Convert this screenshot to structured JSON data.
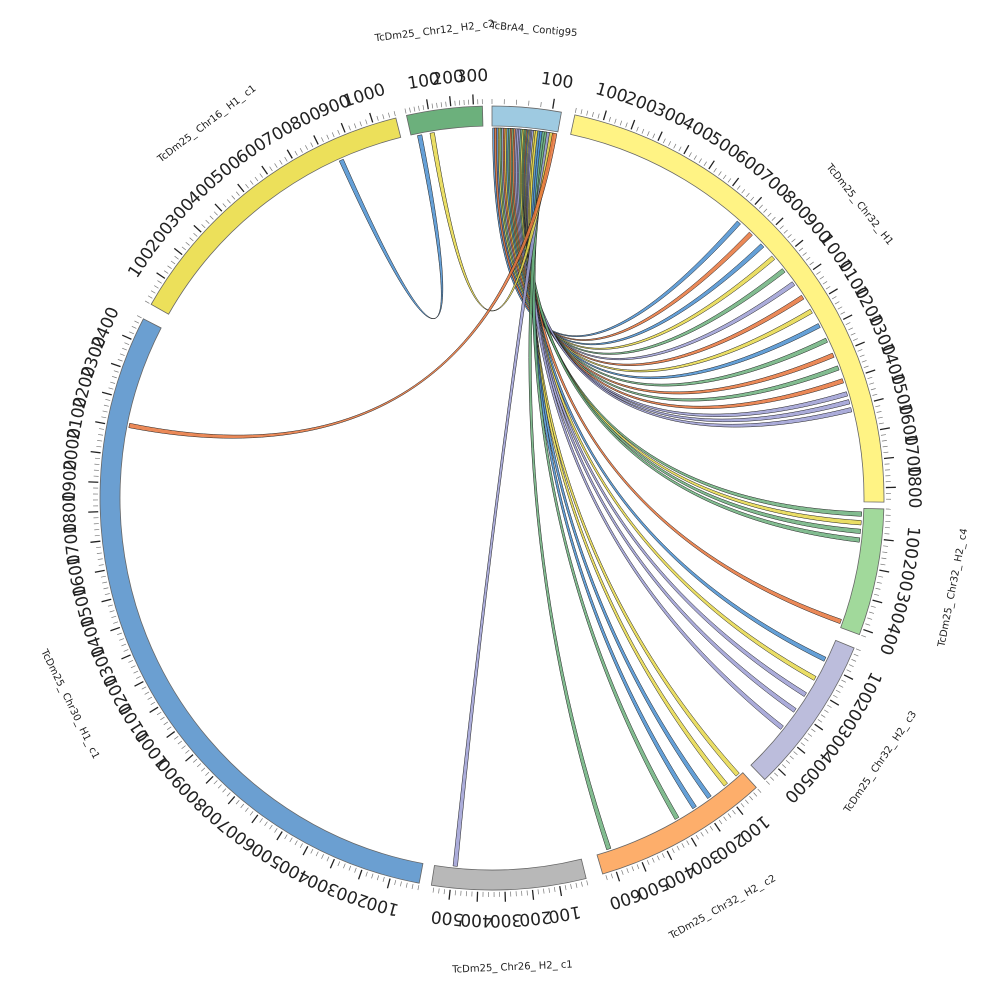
{
  "diagram": {
    "type": "circos",
    "segments": [
      {
        "id": "contig95",
        "label": "TcBrA4_ Contig95",
        "color": "#9ecae1",
        "length": 115,
        "tick_labels": [
          "100"
        ],
        "start_angle": 0.0,
        "end_angle": 10.2
      },
      {
        "id": "chr32_h1",
        "label": "TcDm25_ Chr32_ H1",
        "color": "#fff384",
        "length": 1850,
        "tick_labels": [
          "100",
          "200",
          "300",
          "400",
          "500",
          "600",
          "700",
          "800",
          "900",
          "1000",
          "1100",
          "1200",
          "1300",
          "1400",
          "1500",
          "1600",
          "1700",
          "1800"
        ],
        "start_angle": 12.2,
        "end_angle": 90.6
      },
      {
        "id": "chr32_h2_c4",
        "label": "TcDm25_ Chr32_ H2_ c4",
        "color": "#a1d99b",
        "length": 420,
        "tick_labels": [
          "100",
          "200",
          "300",
          "400"
        ],
        "start_angle": 91.6,
        "end_angle": 110.4
      },
      {
        "id": "chr32_h2_c3",
        "label": "TcDm25_ Chr32_ H2_ c3",
        "color": "#bcbddc",
        "length": 560,
        "tick_labels": [
          "100",
          "200",
          "300",
          "400",
          "500"
        ],
        "start_angle": 112.5,
        "end_angle": 135.9
      },
      {
        "id": "chr32_h2_c2",
        "label": "TcDm25_ Chr32_ H2_ c2",
        "color": "#fdae6b",
        "length": 650,
        "tick_labels": [
          "100",
          "200",
          "300",
          "400",
          "500",
          "600"
        ],
        "start_angle": 137.6,
        "end_angle": 163.6
      },
      {
        "id": "chr26_h2_c1",
        "label": "TcDm25_ Chr26_ H2_ c1",
        "color": "#b8b8b8",
        "length": 570,
        "tick_labels": [
          "100",
          "200",
          "300",
          "400",
          "500"
        ],
        "start_angle": 166.1,
        "end_angle": 188.9
      },
      {
        "id": "chr30_h1_c1",
        "label": "TcDm25_ Chr30_ H1_ c1",
        "color": "#6b9fd1",
        "length": 2480,
        "tick_labels": [
          "100",
          "200",
          "300",
          "400",
          "500",
          "600",
          "700",
          "800",
          "900",
          "1000",
          "1100",
          "1200",
          "1300",
          "1400",
          "1500",
          "1600",
          "1700",
          "1800",
          "1900",
          "2000",
          "2100",
          "2200",
          "2300",
          "2400"
        ],
        "start_angle": 190.7,
        "end_angle": 297.2
      },
      {
        "id": "chr16_h1_c1",
        "label": "TcDm25_ Chr16_ H1_ c1",
        "color": "#ece05a",
        "length": 1080,
        "tick_labels": [
          "100",
          "200",
          "300",
          "400",
          "500",
          "600",
          "700",
          "800",
          "900",
          "1000"
        ],
        "start_angle": 299.6,
        "end_angle": 345.8
      },
      {
        "id": "chr12_h2_c2",
        "label": "TcDm25_ Chr12_ H2_ c2",
        "color": "#6cb07c",
        "length": 340,
        "tick_labels": [
          "100",
          "200",
          "300"
        ],
        "start_angle": 347.4,
        "end_angle": 358.6
      }
    ],
    "links": [
      {
        "from": "contig95",
        "from_pos": 5,
        "to": "chr32_h1",
        "to_pos": 700,
        "color": "#4a8fd0"
      },
      {
        "from": "contig95",
        "from_pos": 8,
        "to": "chr32_h1",
        "to_pos": 760,
        "color": "#e8743b"
      },
      {
        "from": "contig95",
        "from_pos": 12,
        "to": "chr32_h1",
        "to_pos": 820,
        "color": "#4a8fd0"
      },
      {
        "from": "contig95",
        "from_pos": 15,
        "to": "chr32_h1",
        "to_pos": 880,
        "color": "#e6d84a"
      },
      {
        "from": "contig95",
        "from_pos": 18,
        "to": "chr32_h1",
        "to_pos": 940,
        "color": "#6cb07c"
      },
      {
        "from": "contig95",
        "from_pos": 21,
        "to": "chr32_h1",
        "to_pos": 1000,
        "color": "#9c9ed4"
      },
      {
        "from": "contig95",
        "from_pos": 24,
        "to": "chr32_h1",
        "to_pos": 1060,
        "color": "#e8743b"
      },
      {
        "from": "contig95",
        "from_pos": 27,
        "to": "chr32_h1",
        "to_pos": 1120,
        "color": "#e6d84a"
      },
      {
        "from": "contig95",
        "from_pos": 30,
        "to": "chr32_h1",
        "to_pos": 1180,
        "color": "#4a8fd0"
      },
      {
        "from": "contig95",
        "from_pos": 33,
        "to": "chr32_h1",
        "to_pos": 1240,
        "color": "#6cb07c"
      },
      {
        "from": "contig95",
        "from_pos": 36,
        "to": "chr32_h1",
        "to_pos": 1300,
        "color": "#e8743b"
      },
      {
        "from": "contig95",
        "from_pos": 39,
        "to": "chr32_h1",
        "to_pos": 1350,
        "color": "#6cb07c"
      },
      {
        "from": "contig95",
        "from_pos": 42,
        "to": "chr32_h1",
        "to_pos": 1400,
        "color": "#e8743b"
      },
      {
        "from": "contig95",
        "from_pos": 45,
        "to": "chr32_h1",
        "to_pos": 1450,
        "color": "#9c9ed4"
      },
      {
        "from": "contig95",
        "from_pos": 48,
        "to": "chr32_h1",
        "to_pos": 1480,
        "color": "#9c9ed4"
      },
      {
        "from": "contig95",
        "from_pos": 51,
        "to": "chr32_h1",
        "to_pos": 1510,
        "color": "#9c9ed4"
      },
      {
        "from": "contig95",
        "from_pos": 54,
        "to": "chr32_h2_c4",
        "to_pos": 20,
        "color": "#6cb07c"
      },
      {
        "from": "contig95",
        "from_pos": 57,
        "to": "chr32_h2_c4",
        "to_pos": 50,
        "color": "#e6d84a"
      },
      {
        "from": "contig95",
        "from_pos": 60,
        "to": "chr32_h2_c4",
        "to_pos": 80,
        "color": "#6cb07c"
      },
      {
        "from": "contig95",
        "from_pos": 62,
        "to": "chr32_h2_c4",
        "to_pos": 110,
        "color": "#6cb07c"
      },
      {
        "from": "contig95",
        "from_pos": 64,
        "to": "chr32_h2_c4",
        "to_pos": 400,
        "color": "#e8743b"
      },
      {
        "from": "contig95",
        "from_pos": 66,
        "to": "chr32_h2_c3",
        "to_pos": 80,
        "color": "#4a8fd0"
      },
      {
        "from": "contig95",
        "from_pos": 68,
        "to": "chr32_h2_c3",
        "to_pos": 160,
        "color": "#e6d84a"
      },
      {
        "from": "contig95",
        "from_pos": 70,
        "to": "chr32_h2_c3",
        "to_pos": 230,
        "color": "#9c9ed4"
      },
      {
        "from": "contig95",
        "from_pos": 72,
        "to": "chr32_h2_c3",
        "to_pos": 300,
        "color": "#9c9ed4"
      },
      {
        "from": "contig95",
        "from_pos": 74,
        "to": "chr32_h2_c3",
        "to_pos": 380,
        "color": "#9c9ed4"
      },
      {
        "from": "contig95",
        "from_pos": 77,
        "to": "chr32_h2_c2",
        "to_pos": 20,
        "color": "#e6d84a"
      },
      {
        "from": "contig95",
        "from_pos": 80,
        "to": "chr32_h2_c2",
        "to_pos": 80,
        "color": "#e6d84a"
      },
      {
        "from": "contig95",
        "from_pos": 84,
        "to": "chr32_h2_c2",
        "to_pos": 160,
        "color": "#4a8fd0"
      },
      {
        "from": "contig95",
        "from_pos": 88,
        "to": "chr32_h2_c2",
        "to_pos": 230,
        "color": "#4a8fd0"
      },
      {
        "from": "contig95",
        "from_pos": 92,
        "to": "chr32_h2_c2",
        "to_pos": 310,
        "color": "#6cb07c"
      },
      {
        "from": "contig95",
        "from_pos": 96,
        "to": "chr32_h2_c2",
        "to_pos": 600,
        "color": "#6cb07c"
      },
      {
        "from": "contig95",
        "from_pos": 100,
        "to": "chr26_h2_c1",
        "to_pos": 490,
        "color": "#9c9ed4"
      },
      {
        "from": "contig95",
        "from_pos": 105,
        "to": "chr12_h2_c2",
        "to_pos": 100,
        "color": "#e6d84a"
      },
      {
        "from": "chr16_h1_c1",
        "from_pos": 850,
        "to": "chr12_h2_c2",
        "to_pos": 40,
        "color": "#4a8fd0"
      },
      {
        "from": "chr30_h1_c1",
        "from_pos": 2110,
        "to": "contig95",
        "to_pos": 110,
        "color": "#e8743b"
      }
    ]
  }
}
